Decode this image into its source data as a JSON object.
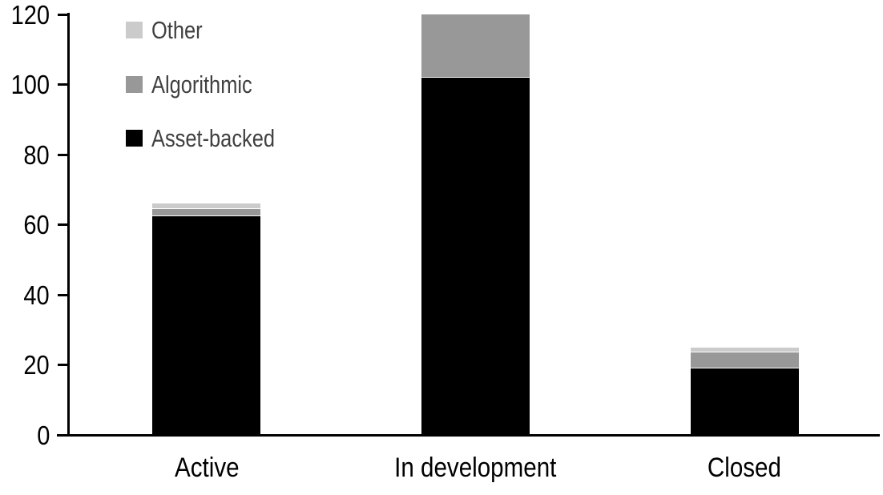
{
  "chart_data": {
    "type": "bar",
    "stacked": true,
    "title": "",
    "xlabel": "",
    "ylabel": "",
    "categories": [
      "Active",
      "In development",
      "Closed"
    ],
    "series": [
      {
        "name": "Asset-backed",
        "color": "#000000",
        "values": [
          62.5,
          102,
          19
        ]
      },
      {
        "name": "Algorithmic",
        "color": "#989898",
        "values": [
          2,
          18,
          4.5
        ]
      },
      {
        "name": "Other",
        "color": "#cbcbcb",
        "values": [
          1.5,
          0,
          1.5
        ]
      }
    ],
    "stack_totals": [
      66,
      120,
      25
    ],
    "ylim": [
      0,
      120
    ],
    "yticks": [
      "0",
      "20",
      "40",
      "60",
      "80",
      "100",
      "120"
    ],
    "grid": false,
    "legend_position": "top-left",
    "legend_order": [
      "Other",
      "Algorithmic",
      "Asset-backed"
    ]
  },
  "colors": {
    "background": "#ffffff",
    "axis": "#000000",
    "tick_label_text": "#000000",
    "category_label_text": "#000000",
    "legend_text": "#404040",
    "segment_separator": "#ffffff"
  }
}
